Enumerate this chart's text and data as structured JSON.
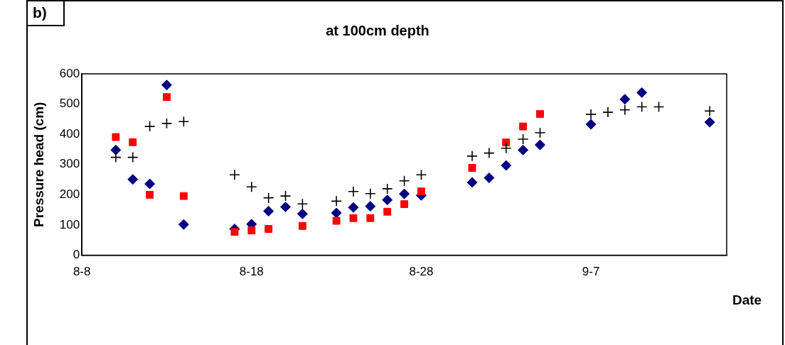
{
  "chart_data": {
    "type": "scatter",
    "title": "at 100cm depth",
    "xlabel": "Date",
    "ylabel": "Pressure head (cm)",
    "annotations": [
      "b)"
    ],
    "x": [
      "--08-10",
      "--08-11",
      "--08-12",
      "--08-13",
      "--08-14",
      "--08-17",
      "--08-18",
      "--08-19",
      "--08-20",
      "--08-21",
      "--08-23",
      "--08-24",
      "--08-25",
      "--08-26",
      "--08-27",
      "--08-28",
      "--08-31",
      "--09-01",
      "--09-02",
      "--09-03",
      "--09-04",
      "--09-07",
      "--09-08",
      "--09-09",
      "--09-10",
      "--09-11",
      "--09-14"
    ],
    "series": [
      {
        "color": "#000080",
        "marker": "diamond",
        "values": [
          348,
          251,
          236,
          563,
          102,
          87,
          103,
          146,
          160,
          137,
          140,
          158,
          162,
          183,
          203,
          198,
          241,
          256,
          297,
          348,
          365,
          433,
          null,
          516,
          538,
          null,
          440
        ]
      },
      {
        "color": "#ff0000",
        "marker": "square",
        "values": [
          391,
          374,
          200,
          523,
          196,
          77,
          82,
          87,
          null,
          97,
          114,
          123,
          123,
          144,
          169,
          211,
          289,
          null,
          373,
          426,
          467,
          null,
          null,
          null,
          null,
          null,
          null
        ]
      },
      {
        "color": "#000000",
        "marker": "cross",
        "values": [
          324,
          324,
          426,
          436,
          442,
          266,
          226,
          190,
          196,
          170,
          179,
          211,
          204,
          220,
          246,
          266,
          328,
          338,
          354,
          384,
          405,
          466,
          473,
          481,
          491,
          491,
          477
        ]
      }
    ],
    "xlim": [
      "--08-08",
      "--09-15"
    ],
    "xticks": [
      {
        "value": "--08-08",
        "label": "8-8"
      },
      {
        "value": "--08-18",
        "label": "8-18"
      },
      {
        "value": "--08-28",
        "label": "8-28"
      },
      {
        "value": "--09-07",
        "label": "9-7"
      }
    ],
    "ylim": [
      0,
      600
    ],
    "yticks": [
      0,
      100,
      200,
      300,
      400,
      500,
      600
    ],
    "legend": false
  }
}
